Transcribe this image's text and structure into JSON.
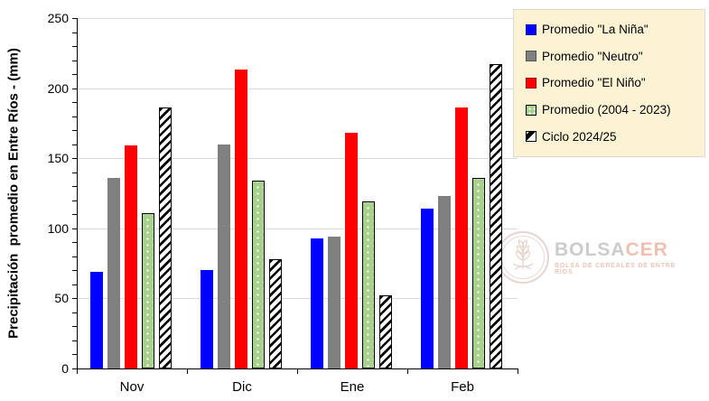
{
  "chart_data": {
    "type": "bar",
    "title": "",
    "xlabel": "",
    "ylabel": "Precipitación  promedio en Entre Ríos - (mm)",
    "categories": [
      "Nov",
      "Dic",
      "Ene",
      "Feb"
    ],
    "series": [
      {
        "name": "Promedio \"La Niña\"",
        "color": "#0101fe",
        "pattern": "solid",
        "values": [
          69,
          70,
          93,
          114
        ]
      },
      {
        "name": "Promedio \"Neutro\"",
        "color": "#808080",
        "pattern": "solid",
        "values": [
          136,
          160,
          94,
          123
        ]
      },
      {
        "name": "Promedio \"El Niño\"",
        "color": "#fe0000",
        "pattern": "solid",
        "values": [
          159,
          213,
          168,
          186
        ]
      },
      {
        "name": "Promedio (2004 - 2023)",
        "color": "#a9d18e",
        "pattern": "dots",
        "values": [
          111,
          134,
          119,
          136
        ]
      },
      {
        "name": "Ciclo 2024/25",
        "color": "#ffffff",
        "pattern": "hatch",
        "values": [
          186,
          78,
          52,
          217
        ]
      }
    ],
    "ylim": [
      0,
      250
    ],
    "yticks": [
      0,
      50,
      100,
      150,
      200,
      250
    ],
    "minor_tick_step": 10,
    "grid": true,
    "legend_position": "top-right",
    "legend_bg": "#fcf2d4",
    "gridline_color": "#d9d9d9"
  },
  "watermark": {
    "brand_primary": "BOLSA",
    "brand_accent": "CER",
    "subtitle": "BOLSA DE CEREALES DE ENTRE RÍOS"
  }
}
